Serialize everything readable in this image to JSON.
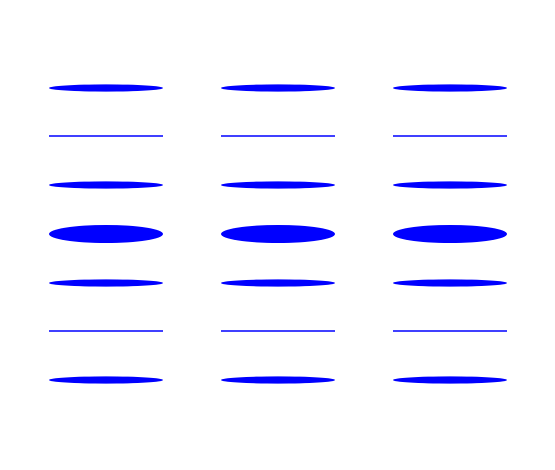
{
  "colors": {
    "background": "#ffffff",
    "shape_fill": "#0000ff"
  },
  "grid": {
    "columns": 3,
    "rows": [
      {
        "shape": "ellipse",
        "relative_thickness": 0.4
      },
      {
        "shape": "line",
        "relative_thickness": 0.1
      },
      {
        "shape": "ellipse",
        "relative_thickness": 0.4
      },
      {
        "shape": "ellipse",
        "relative_thickness": 1.0
      },
      {
        "shape": "ellipse",
        "relative_thickness": 0.4
      },
      {
        "shape": "line",
        "relative_thickness": 0.1
      },
      {
        "shape": "ellipse",
        "relative_thickness": 0.4
      }
    ]
  }
}
